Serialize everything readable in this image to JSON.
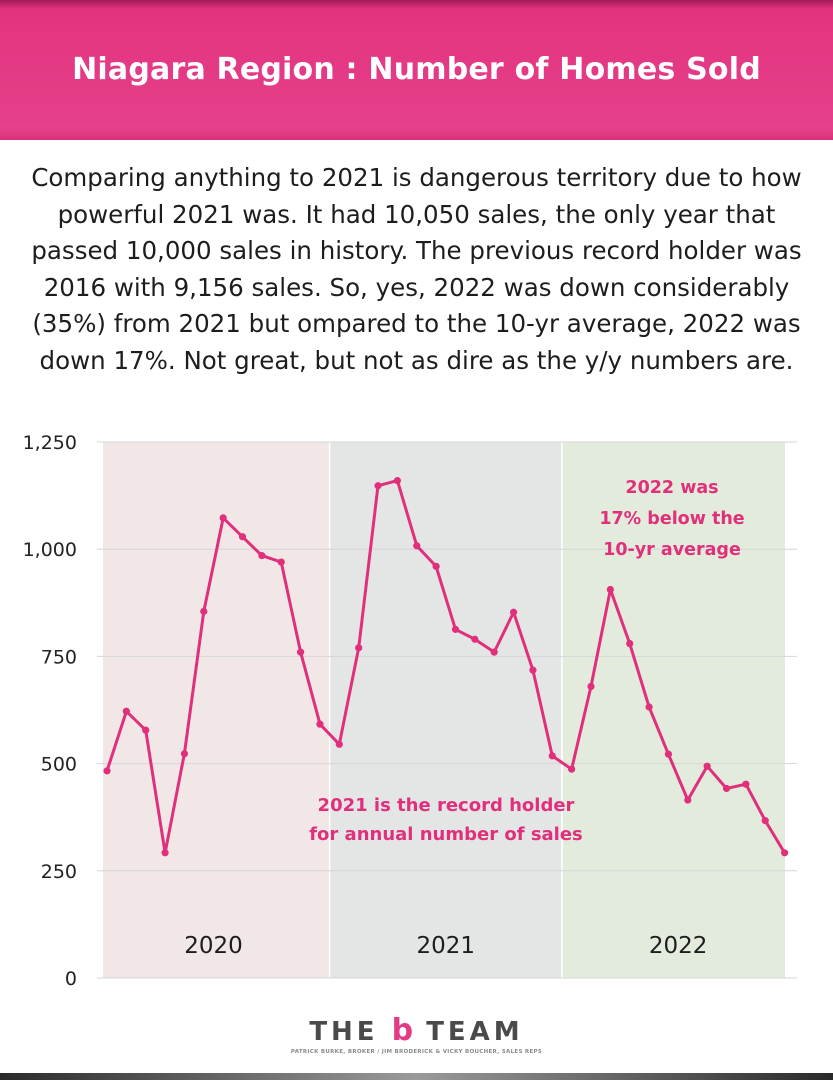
{
  "header": {
    "title": "Niagara Region : Number of Homes Sold"
  },
  "description": "Comparing anything to 2021 is dangerous territory due to how powerful 2021 was. It had 10,050 sales, the only year that passed 10,000 sales in history. The previous record holder was 2016 with 9,156 sales. So, yes, 2022 was down considerably (35%) from 2021 but ompared to the 10-yr average, 2022 was down 17%. Not great, but not as dire as the y/y numbers are.",
  "chart_data": {
    "type": "line",
    "title": "",
    "xlabel": "",
    "ylabel": "",
    "ylim": [
      0,
      1250
    ],
    "yticks": [
      0,
      250,
      500,
      750,
      1000,
      1250
    ],
    "ytick_labels": [
      "0",
      "250",
      "500",
      "750",
      "1,000",
      "1,250"
    ],
    "grid": "horizontal",
    "periods": [
      {
        "label": "2020",
        "start": 0,
        "end": 11,
        "color": "#f1e7e7"
      },
      {
        "label": "2021",
        "start": 12,
        "end": 23,
        "color": "#e4e6e6"
      },
      {
        "label": "2022",
        "start": 24,
        "end": 35,
        "color": "#e3ecdc"
      }
    ],
    "series": [
      {
        "color": "#e0307c",
        "values": [
          483,
          622,
          578,
          292,
          523,
          855,
          1073,
          1029,
          985,
          970,
          760,
          592,
          545,
          770,
          1148,
          1160,
          1008,
          960,
          813,
          790,
          760,
          853,
          718,
          518,
          487,
          680,
          906,
          780,
          632,
          522,
          415,
          494,
          442,
          452,
          367,
          292
        ]
      }
    ],
    "annotations": [
      {
        "lines": [
          "2022 was",
          "17% below the",
          "10-yr average"
        ]
      },
      {
        "lines": [
          "2021 is the record holder",
          "for annual number of sales"
        ]
      }
    ]
  },
  "footer": {
    "brand_left": "THE",
    "brand_mark": "b",
    "brand_right": "TEAM",
    "tagline": "PATRICK BURKE, BROKER / JIM BRODERICK & VICKY BOUCHER, SALES REPS"
  },
  "colors": {
    "accent": "#e6408a",
    "line": "#e0307c"
  }
}
